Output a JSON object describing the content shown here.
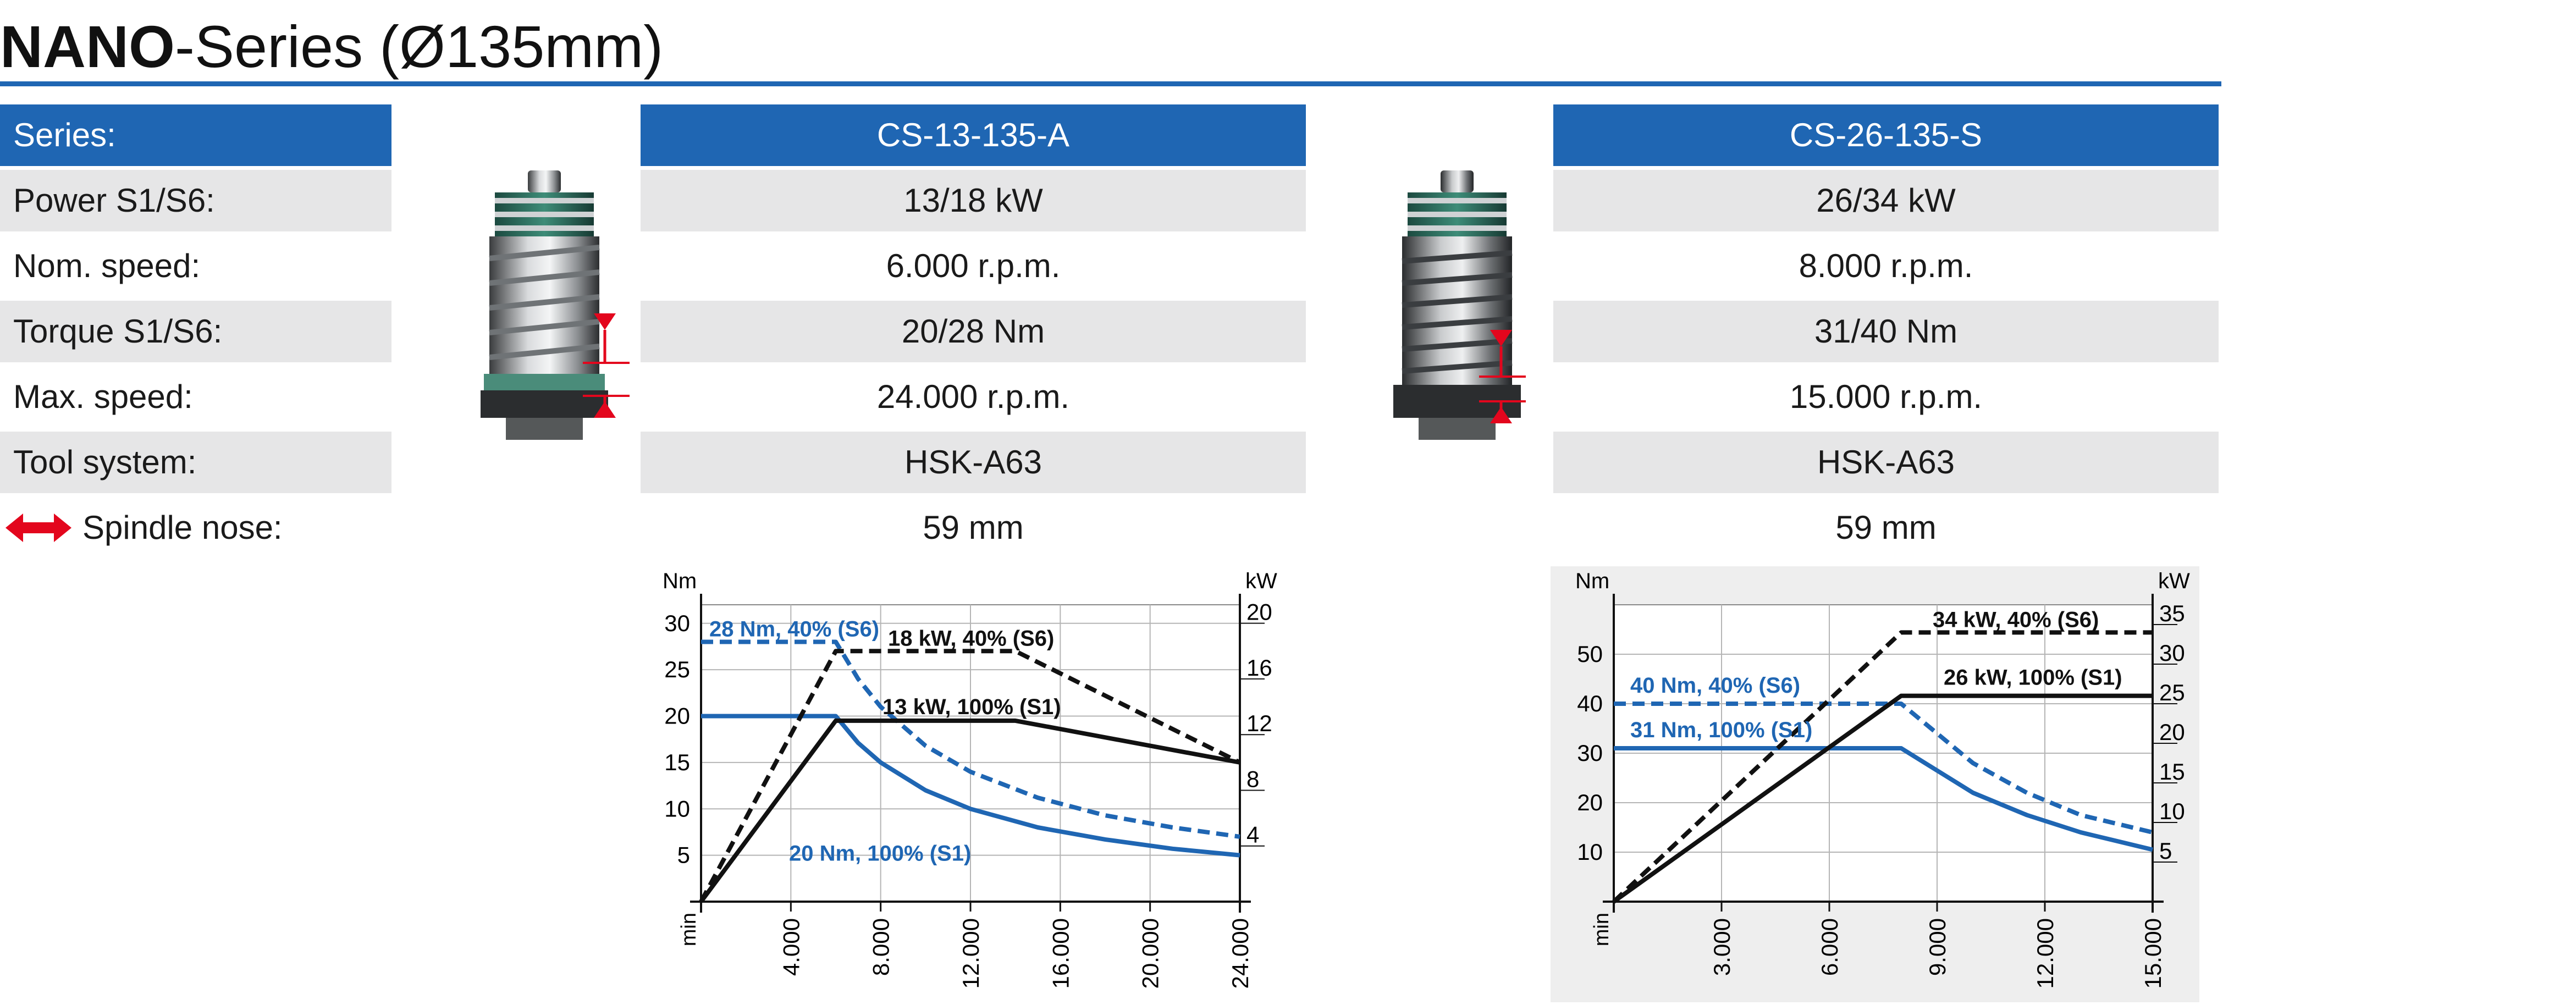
{
  "title": {
    "bold": "NANO",
    "rest": "-Series (Ø135mm)"
  },
  "labels": {
    "series": "Series:",
    "power": "Power S1/S6:",
    "nom_speed": "Nom. speed:",
    "torque": "Torque S1/S6:",
    "max_speed": "Max. speed:",
    "tool_system": "Tool system:",
    "spindle_nose": "Spindle nose:"
  },
  "products": [
    {
      "name": "CS-13-135-A",
      "power": "13/18 kW",
      "nom_speed": "6.000 r.p.m.",
      "torque": "20/28 Nm",
      "max_speed": "24.000 r.p.m.",
      "tool_system": "HSK-A63",
      "spindle_nose": "59 mm"
    },
    {
      "name": "CS-26-135-S",
      "power": "26/34 kW",
      "nom_speed": "8.000 r.p.m.",
      "torque": "31/40 Nm",
      "max_speed": "15.000 r.p.m.",
      "tool_system": "HSK-A63",
      "spindle_nose": "59 mm"
    }
  ],
  "colors": {
    "brand_blue": "#1f66b3",
    "row_grey": "#e6e6e7",
    "arrow_red": "#e3061d"
  },
  "chart_data": [
    {
      "type": "line",
      "left_unit": "Nm",
      "right_unit": "kW",
      "x_unit": "min-1",
      "x_ticks": [
        "4.000",
        "8.000",
        "12.000",
        "16.000",
        "20.000",
        "24.000"
      ],
      "xlim": [
        0,
        24000
      ],
      "y_ticks_left": [
        "5",
        "10",
        "15",
        "20",
        "25",
        "30"
      ],
      "ylim_left": [
        0,
        32
      ],
      "y_ticks_right": [
        "4",
        "8",
        "12",
        "16",
        "20"
      ],
      "ylim_right": [
        0,
        21.33
      ],
      "grid": true,
      "series": [
        {
          "name": "28 Nm, 40% (S6)",
          "axis": "left",
          "style": "dashed",
          "color": "#1f66b3",
          "x": [
            0,
            6000,
            7000,
            8000,
            10000,
            12000,
            15000,
            18000,
            21000,
            24000
          ],
          "y": [
            28,
            28,
            24,
            21,
            16.8,
            14,
            11.2,
            9.3,
            8.0,
            7.0
          ]
        },
        {
          "name": "20 Nm, 100% (S1)",
          "axis": "left",
          "style": "solid",
          "color": "#1f66b3",
          "x": [
            0,
            6000,
            7000,
            8000,
            10000,
            12000,
            15000,
            18000,
            21000,
            24000
          ],
          "y": [
            20,
            20,
            17.1,
            15,
            12,
            10,
            8,
            6.7,
            5.7,
            5
          ]
        },
        {
          "name": "18 kW, 40% (S6)",
          "axis": "right",
          "style": "dashed",
          "color": "#111111",
          "x": [
            0,
            6000,
            14000,
            24000
          ],
          "y": [
            0,
            18,
            18,
            10
          ]
        },
        {
          "name": "13 kW, 100% (S1)",
          "axis": "right",
          "style": "solid",
          "color": "#111111",
          "x": [
            0,
            6000,
            14000,
            24000
          ],
          "y": [
            0,
            13,
            13,
            10
          ]
        }
      ]
    },
    {
      "type": "line",
      "left_unit": "Nm",
      "right_unit": "kW",
      "x_unit": "min-1",
      "x_ticks": [
        "3.000",
        "6.000",
        "9.000",
        "12.000",
        "15.000"
      ],
      "xlim": [
        0,
        15000
      ],
      "y_ticks_left": [
        "10",
        "20",
        "30",
        "40",
        "50"
      ],
      "ylim_left": [
        0,
        60
      ],
      "y_ticks_right": [
        "5",
        "10",
        "15",
        "20",
        "25",
        "30",
        "35"
      ],
      "ylim_right": [
        0,
        37.5
      ],
      "grid": true,
      "series": [
        {
          "name": "40 Nm, 40% (S6)",
          "axis": "left",
          "style": "dashed",
          "color": "#1f66b3",
          "x": [
            0,
            8000,
            9000,
            10000,
            11500,
            13000,
            15000
          ],
          "y": [
            40,
            40,
            34,
            28,
            22,
            17.5,
            14
          ]
        },
        {
          "name": "31 Nm, 100% (S1)",
          "axis": "left",
          "style": "solid",
          "color": "#1f66b3",
          "x": [
            0,
            8000,
            9000,
            10000,
            11500,
            13000,
            15000
          ],
          "y": [
            31,
            31,
            26.5,
            22,
            17.5,
            14,
            10.5
          ]
        },
        {
          "name": "34 kW, 40% (S6)",
          "axis": "right",
          "style": "dashed",
          "color": "#111111",
          "x": [
            0,
            8000,
            15000
          ],
          "y": [
            0,
            34,
            34
          ]
        },
        {
          "name": "26 kW, 100% (S1)",
          "axis": "right",
          "style": "solid",
          "color": "#111111",
          "x": [
            0,
            8000,
            15000
          ],
          "y": [
            0,
            26,
            26
          ]
        }
      ]
    }
  ]
}
